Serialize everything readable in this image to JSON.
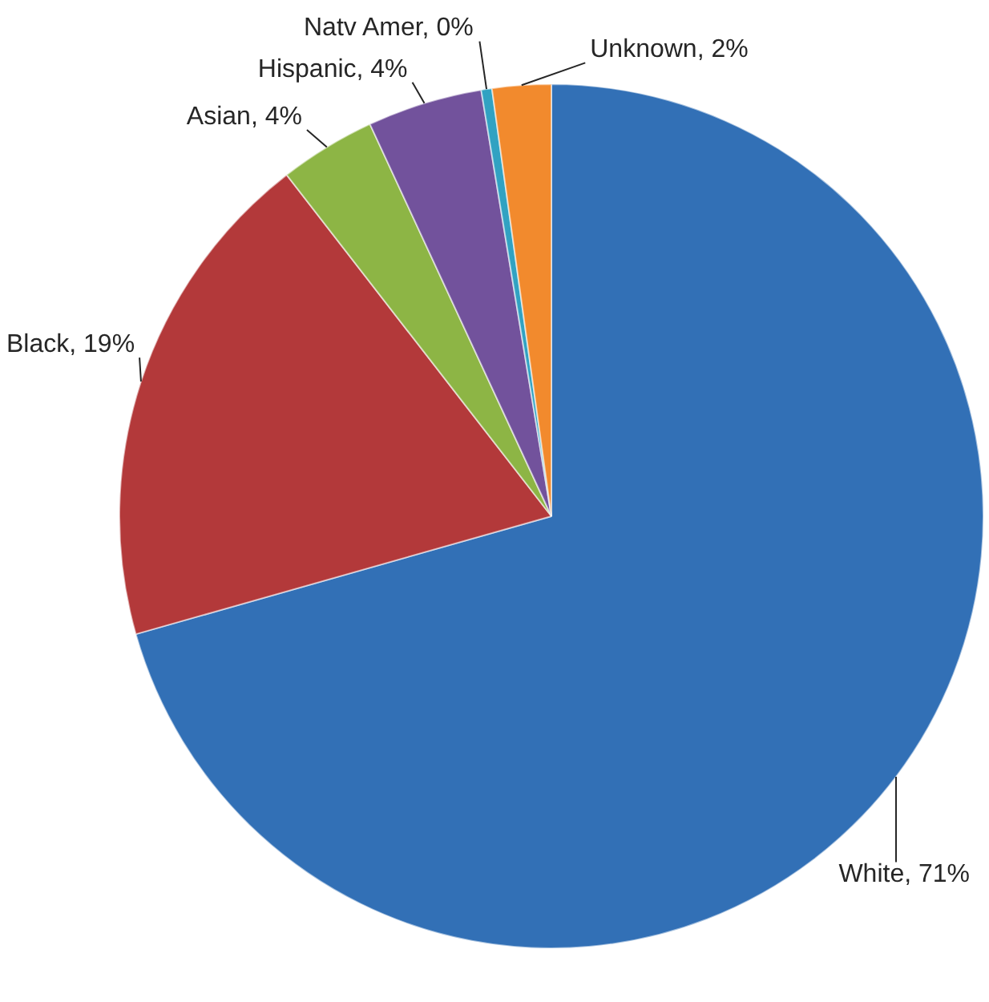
{
  "chart_data": {
    "type": "pie",
    "categories": [
      "White",
      "Black",
      "Asian",
      "Hispanic",
      "Natv Amer",
      "Unknown"
    ],
    "values": [
      70.6,
      18.9,
      3.6,
      4.3,
      0.4,
      2.2
    ],
    "colors": [
      "#3270b6",
      "#b3393a",
      "#8db545",
      "#72529c",
      "#31a2c2",
      "#f28a2d"
    ],
    "value_labels": [
      "71%",
      "19%",
      "4%",
      "4%",
      "0%",
      "2%"
    ],
    "legend": false
  }
}
